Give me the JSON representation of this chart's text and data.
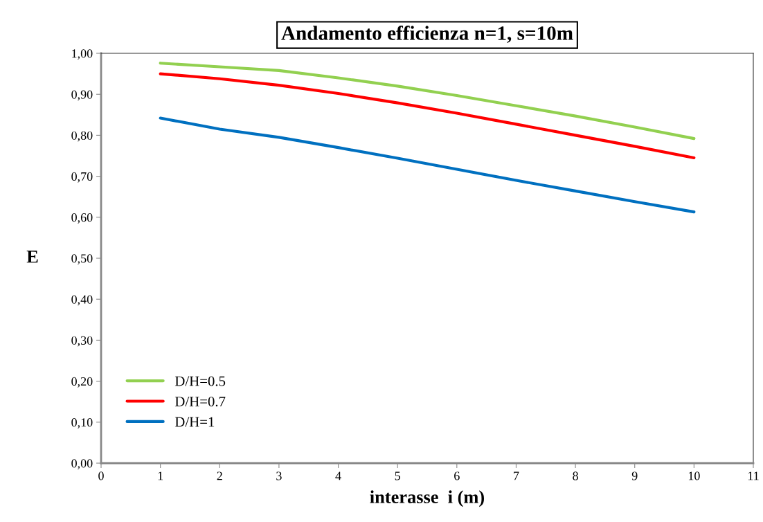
{
  "chart_data": {
    "type": "line",
    "title": "Andamento efficienza n=1, s=10m",
    "xlabel": "interasse  i (m)",
    "ylabel": "E",
    "x": [
      1,
      2,
      3,
      4,
      5,
      6,
      7,
      8,
      9,
      10
    ],
    "series": [
      {
        "name": "D/H=0.5",
        "color": "#92d050",
        "values": [
          0.976,
          0.967,
          0.958,
          0.94,
          0.92,
          0.897,
          0.872,
          0.847,
          0.82,
          0.792
        ]
      },
      {
        "name": "D/H=0.7",
        "color": "#ff0000",
        "values": [
          0.95,
          0.938,
          0.922,
          0.902,
          0.879,
          0.854,
          0.827,
          0.8,
          0.773,
          0.745
        ]
      },
      {
        "name": "D/H=1",
        "color": "#0070c0",
        "values": [
          0.842,
          0.815,
          0.795,
          0.77,
          0.744,
          0.717,
          0.69,
          0.664,
          0.638,
          0.613
        ]
      }
    ],
    "xlim": [
      0,
      11
    ],
    "xticks": [
      0,
      1,
      2,
      3,
      4,
      5,
      6,
      7,
      8,
      9,
      10,
      11
    ],
    "ylim": [
      0,
      1
    ],
    "yticks": [
      {
        "value": 0,
        "label": "0,00"
      },
      {
        "value": 0.1,
        "label": "0,10"
      },
      {
        "value": 0.2,
        "label": "0,20"
      },
      {
        "value": 0.3,
        "label": "0,30"
      },
      {
        "value": 0.4,
        "label": "0,40"
      },
      {
        "value": 0.5,
        "label": "0,50"
      },
      {
        "value": 0.6,
        "label": "0,60"
      },
      {
        "value": 0.7,
        "label": "0,70"
      },
      {
        "value": 0.8,
        "label": "0,80"
      },
      {
        "value": 0.9,
        "label": "0,90"
      },
      {
        "value": 1,
        "label": "1,00"
      }
    ],
    "grid": false,
    "legend": "bottom left",
    "marker": "none",
    "line_style": "solid"
  }
}
